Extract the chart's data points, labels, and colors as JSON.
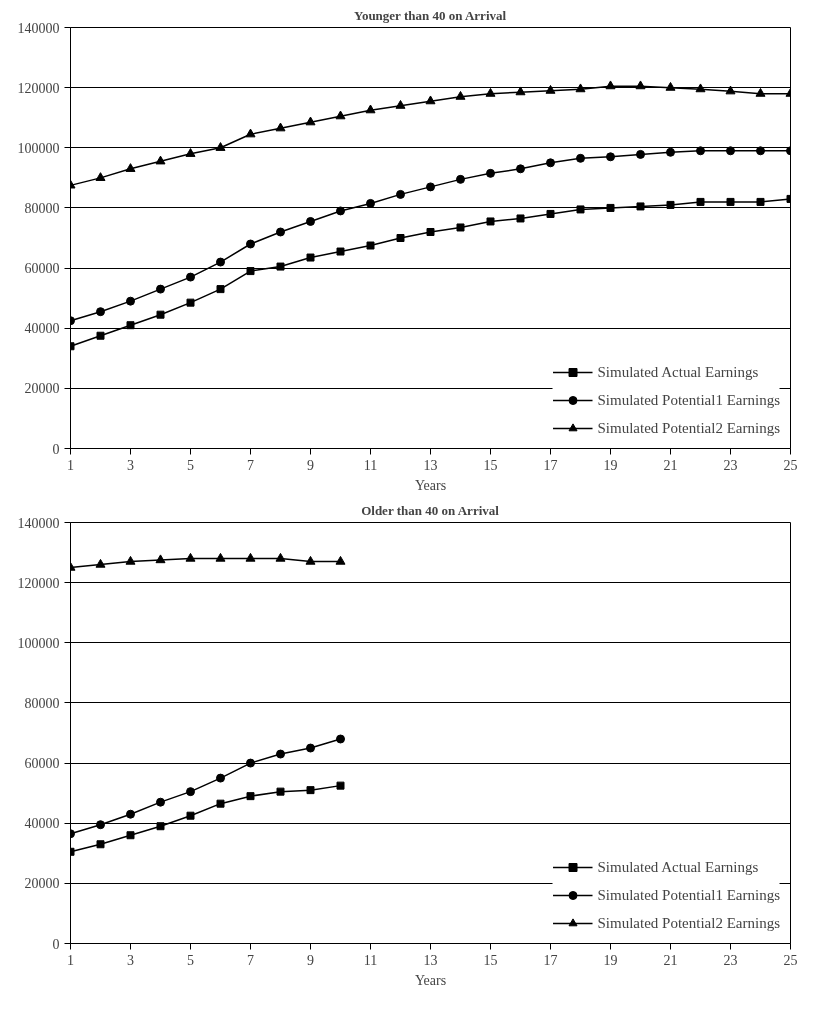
{
  "chart_data": [
    {
      "type": "line",
      "title": "Younger than 40 on Arrival",
      "xlabel": "Years",
      "x": [
        1,
        2,
        3,
        4,
        5,
        6,
        7,
        8,
        9,
        10,
        11,
        12,
        13,
        14,
        15,
        16,
        17,
        18,
        19,
        20,
        21,
        22,
        23,
        24,
        25
      ],
      "xlim": [
        1,
        25
      ],
      "xticks": [
        1,
        3,
        5,
        7,
        9,
        11,
        13,
        15,
        17,
        19,
        21,
        23,
        25
      ],
      "ylim": [
        0,
        140000
      ],
      "yticks": [
        0,
        20000,
        40000,
        60000,
        80000,
        100000,
        120000,
        140000
      ],
      "grid": "y",
      "legend": "bottom right",
      "line_style": "solid",
      "series": [
        {
          "name": "Simulated Actual Earnings",
          "color": "#000000",
          "marker": "square",
          "values": [
            34000,
            37500,
            41000,
            44500,
            48500,
            53000,
            59000,
            60500,
            63500,
            65500,
            67500,
            70000,
            72000,
            73500,
            75500,
            76500,
            78000,
            79500,
            80000,
            80500,
            81000,
            82000,
            82000,
            82000,
            83000
          ]
        },
        {
          "name": "Simulated Potential1 Earnings",
          "color": "#000000",
          "marker": "circle",
          "values": [
            42500,
            45500,
            49000,
            53000,
            57000,
            62000,
            68000,
            72000,
            75500,
            79000,
            81500,
            84500,
            87000,
            89500,
            91500,
            93000,
            95000,
            96500,
            97000,
            97800,
            98500,
            99000,
            99000,
            99000,
            99000
          ]
        },
        {
          "name": "Simulated Potential2 Earnings",
          "color": "#000000",
          "marker": "triangle",
          "values": [
            87500,
            90000,
            93000,
            95500,
            98000,
            100000,
            104500,
            106500,
            108500,
            110500,
            112500,
            114000,
            115500,
            117000,
            118000,
            118500,
            119000,
            119500,
            120500,
            120500,
            120000,
            119500,
            118800,
            118000,
            118000
          ]
        }
      ]
    },
    {
      "type": "line",
      "title": "Older than 40 on Arrival",
      "xlabel": "Years",
      "x": [
        1,
        2,
        3,
        4,
        5,
        6,
        7,
        8,
        9,
        10
      ],
      "xlim": [
        1,
        25
      ],
      "xticks": [
        1,
        3,
        5,
        7,
        9,
        11,
        13,
        15,
        17,
        19,
        21,
        23,
        25
      ],
      "ylim": [
        0,
        140000
      ],
      "yticks": [
        0,
        20000,
        40000,
        60000,
        80000,
        100000,
        120000,
        140000
      ],
      "grid": "y",
      "legend": "bottom right",
      "line_style": "solid",
      "series": [
        {
          "name": "Simulated Actual Earnings",
          "color": "#000000",
          "marker": "square",
          "values": [
            30500,
            33000,
            36000,
            39000,
            42500,
            46500,
            49000,
            50500,
            51000,
            52500
          ]
        },
        {
          "name": "Simulated Potential1 Earnings",
          "color": "#000000",
          "marker": "circle",
          "values": [
            36500,
            39500,
            43000,
            47000,
            50500,
            55000,
            60000,
            63000,
            65000,
            68000
          ]
        },
        {
          "name": "Simulated Potential2 Earnings",
          "color": "#000000",
          "marker": "triangle",
          "values": [
            125000,
            126000,
            127000,
            127500,
            128000,
            128000,
            128000,
            128000,
            127000,
            127000
          ]
        }
      ]
    }
  ]
}
